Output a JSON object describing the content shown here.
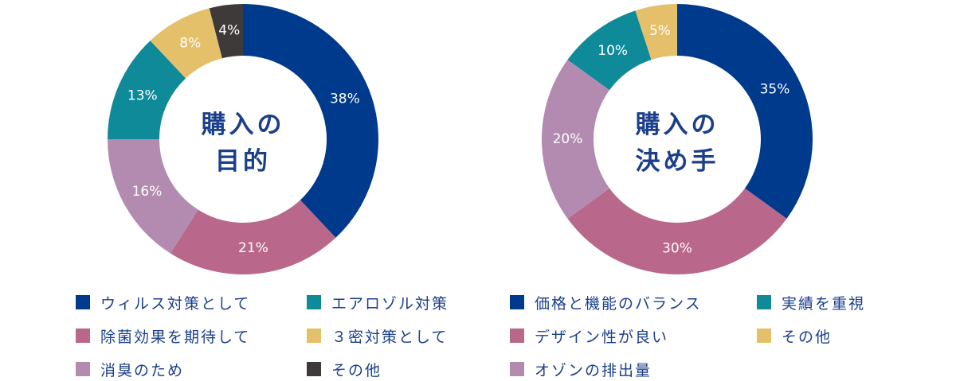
{
  "colors": {
    "navy": "#003a8c",
    "pink": "#b9678a",
    "mauve": "#b38bb0",
    "teal": "#0f8a99",
    "gold": "#e5c06a",
    "charcoal": "#3f3a3a",
    "title": "#1b3f8b"
  },
  "chart_data": [
    {
      "type": "pie",
      "donut": true,
      "center_title_lines": [
        "購入の",
        "目的"
      ],
      "slices": [
        {
          "label": "ウィルス対策として",
          "value": 38,
          "value_label": "38%",
          "color_key": "navy"
        },
        {
          "label": "除菌効果を期待して",
          "value": 21,
          "value_label": "21%",
          "color_key": "pink"
        },
        {
          "label": "消臭のため",
          "value": 16,
          "value_label": "16%",
          "color_key": "mauve"
        },
        {
          "label": "エアロゾル対策",
          "value": 13,
          "value_label": "13%",
          "color_key": "teal"
        },
        {
          "label": "３密対策として",
          "value": 8,
          "value_label": "8%",
          "color_key": "gold"
        },
        {
          "label": "その他",
          "value": 4,
          "value_label": "4%",
          "color_key": "charcoal"
        }
      ],
      "legend_placement": "bottom"
    },
    {
      "type": "pie",
      "donut": true,
      "center_title_lines": [
        "購入の",
        "決め手"
      ],
      "slices": [
        {
          "label": "価格と機能のバランス",
          "value": 35,
          "value_label": "35%",
          "color_key": "navy"
        },
        {
          "label": "デザイン性が良い",
          "value": 30,
          "value_label": "30%",
          "color_key": "pink"
        },
        {
          "label": "オゾンの排出量",
          "value": 20,
          "value_label": "20%",
          "color_key": "mauve"
        },
        {
          "label": "実績を重視",
          "value": 10,
          "value_label": "10%",
          "color_key": "teal"
        },
        {
          "label": "その他",
          "value": 5,
          "value_label": "5%",
          "color_key": "gold"
        }
      ],
      "legend_placement": "bottom"
    }
  ]
}
